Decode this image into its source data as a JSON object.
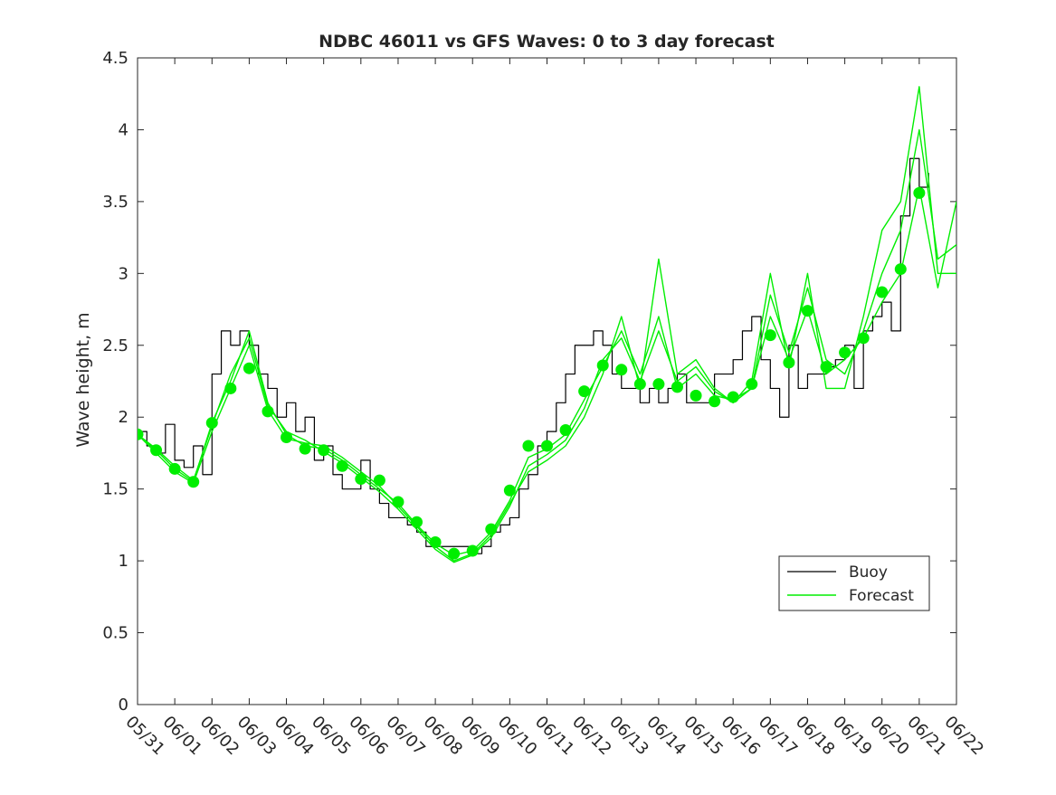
{
  "chart_data": {
    "type": "line",
    "title": "NDBC 46011 vs GFS Waves: 0 to 3 day forecast",
    "xlabel": "",
    "ylabel": "Wave height, m",
    "x_tick_labels": [
      "05/31",
      "06/01",
      "06/02",
      "06/03",
      "06/04",
      "06/05",
      "06/06",
      "06/07",
      "06/08",
      "06/09",
      "06/10",
      "06/11",
      "06/12",
      "06/13",
      "06/14",
      "06/15",
      "06/16",
      "06/17",
      "06/18",
      "06/19",
      "06/20",
      "06/21",
      "06/22"
    ],
    "xlim": [
      0,
      22
    ],
    "ylim": [
      0,
      4.5
    ],
    "y_ticks": [
      0,
      0.5,
      1,
      1.5,
      2,
      2.5,
      3,
      3.5,
      4,
      4.5
    ],
    "grid": false,
    "legend": {
      "placement": "bottom-right",
      "entries": [
        "Buoy",
        "Forecast"
      ]
    },
    "colors": {
      "buoy": "#000000",
      "forecast": "#00ee00",
      "markers": "#00ee00"
    },
    "series": [
      {
        "name": "Buoy",
        "x_unit": "days since 05/31",
        "x": [
          0,
          0.25,
          0.5,
          0.75,
          1,
          1.25,
          1.5,
          1.75,
          2,
          2.25,
          2.5,
          2.75,
          3,
          3.25,
          3.5,
          3.75,
          4,
          4.25,
          4.5,
          4.75,
          5,
          5.25,
          5.5,
          5.75,
          6,
          6.25,
          6.5,
          6.75,
          7,
          7.25,
          7.5,
          7.75,
          8,
          8.25,
          8.5,
          8.75,
          9,
          9.25,
          9.5,
          9.75,
          10,
          10.25,
          10.5,
          10.75,
          11,
          11.25,
          11.5,
          11.75,
          12,
          12.25,
          12.5,
          12.75,
          13,
          13.25,
          13.5,
          13.75,
          14,
          14.25,
          14.5,
          14.75,
          15,
          15.25,
          15.5,
          15.75,
          16,
          16.25,
          16.5,
          16.75,
          17,
          17.25,
          17.5,
          17.75,
          18,
          18.25,
          18.5,
          18.75,
          19,
          19.25,
          19.5,
          19.75,
          20,
          20.25,
          20.5,
          20.75,
          21,
          21.25
        ],
        "y": [
          1.9,
          1.8,
          1.75,
          1.95,
          1.7,
          1.65,
          1.8,
          1.6,
          2.3,
          2.6,
          2.5,
          2.6,
          2.5,
          2.3,
          2.2,
          2.0,
          2.1,
          1.9,
          2.0,
          1.7,
          1.8,
          1.6,
          1.5,
          1.5,
          1.7,
          1.5,
          1.4,
          1.3,
          1.3,
          1.25,
          1.2,
          1.1,
          1.1,
          1.1,
          1.1,
          1.1,
          1.05,
          1.1,
          1.2,
          1.25,
          1.3,
          1.5,
          1.6,
          1.8,
          1.9,
          2.1,
          2.3,
          2.5,
          2.5,
          2.6,
          2.5,
          2.3,
          2.2,
          2.2,
          2.1,
          2.2,
          2.1,
          2.2,
          2.3,
          2.1,
          2.1,
          2.1,
          2.3,
          2.3,
          2.4,
          2.6,
          2.7,
          2.4,
          2.2,
          2.0,
          2.5,
          2.2,
          2.3,
          2.3,
          2.35,
          2.4,
          2.5,
          2.2,
          2.6,
          2.7,
          2.8,
          2.6,
          3.4,
          3.8,
          3.6,
          3.7
        ]
      },
      {
        "name": "Forecast",
        "x_unit": "days since 05/31",
        "x": [
          0,
          0.5,
          1,
          1.5,
          2,
          2.5,
          3,
          3.5,
          4,
          4.5,
          5,
          5.5,
          6,
          6.5,
          7,
          7.5,
          8,
          8.5,
          9,
          9.5,
          10,
          10.5,
          11,
          11.5,
          12,
          12.5,
          13,
          13.5,
          14,
          14.5,
          15,
          15.5,
          16,
          16.5,
          17,
          17.5,
          18,
          18.5,
          19,
          19.5,
          20,
          20.5,
          21,
          21.5,
          22
        ],
        "y": [
          1.88,
          1.77,
          1.64,
          1.55,
          1.96,
          2.25,
          2.6,
          2.1,
          1.88,
          1.8,
          1.78,
          1.7,
          1.6,
          1.5,
          1.4,
          1.25,
          1.12,
          1.04,
          1.07,
          1.2,
          1.42,
          1.72,
          1.78,
          1.88,
          2.12,
          2.35,
          2.6,
          2.3,
          2.7,
          2.2,
          2.3,
          2.15,
          2.12,
          2.2,
          2.7,
          2.4,
          2.75,
          2.3,
          2.4,
          2.55,
          2.8,
          3.0,
          3.6,
          2.9,
          3.5
        ]
      },
      {
        "name": "",
        "x_unit": "days since 05/31",
        "x": [
          0,
          0.5,
          1,
          1.5,
          2,
          2.5,
          3,
          3.5,
          4,
          4.5,
          5,
          5.5,
          6,
          6.5,
          7,
          7.5,
          8,
          8.5,
          9,
          9.5,
          10,
          10.5,
          11,
          11.5,
          12,
          12.5,
          13,
          13.5,
          14,
          14.5,
          15,
          15.5,
          16,
          16.5,
          17,
          17.5,
          18,
          18.5,
          19,
          19.5,
          20,
          20.5,
          21,
          21.5,
          22
        ],
        "y": [
          1.88,
          1.75,
          1.62,
          1.54,
          1.9,
          2.2,
          2.5,
          2.05,
          1.85,
          1.82,
          1.8,
          1.72,
          1.62,
          1.52,
          1.38,
          1.24,
          1.1,
          1.0,
          1.05,
          1.18,
          1.4,
          1.62,
          1.7,
          1.8,
          2.0,
          2.3,
          2.7,
          2.2,
          3.1,
          2.3,
          2.4,
          2.2,
          2.1,
          2.25,
          3.0,
          2.35,
          3.0,
          2.2,
          2.2,
          2.7,
          3.3,
          3.5,
          4.3,
          3.0,
          3.0
        ]
      },
      {
        "name": "",
        "x_unit": "days since 05/31",
        "x": [
          0,
          0.5,
          1,
          1.5,
          2,
          2.5,
          3,
          3.5,
          4,
          4.5,
          5,
          5.5,
          6,
          6.5,
          7,
          7.5,
          8,
          8.5,
          9,
          9.5,
          10,
          10.5,
          11,
          11.5,
          12,
          12.5,
          13,
          13.5,
          14,
          14.5,
          15,
          15.5,
          16,
          16.5,
          17,
          17.5,
          18,
          18.5,
          19,
          19.5,
          20,
          20.5,
          21,
          21.5,
          22
        ],
        "y": [
          1.88,
          1.78,
          1.66,
          1.56,
          1.94,
          2.3,
          2.55,
          2.08,
          1.9,
          1.84,
          1.76,
          1.68,
          1.58,
          1.48,
          1.36,
          1.22,
          1.08,
          0.99,
          1.04,
          1.16,
          1.38,
          1.66,
          1.74,
          1.84,
          2.06,
          2.4,
          2.55,
          2.25,
          2.6,
          2.25,
          2.35,
          2.18,
          2.1,
          2.2,
          2.85,
          2.45,
          2.9,
          2.4,
          2.3,
          2.6,
          3.0,
          3.3,
          4.0,
          3.1,
          3.2
        ]
      }
    ],
    "markers": {
      "name": "Forecast points",
      "x_unit": "days since 05/31",
      "x": [
        0,
        0.5,
        1,
        1.5,
        2,
        2.5,
        3,
        3.5,
        4,
        4.5,
        5,
        5.5,
        6,
        6.5,
        7,
        7.5,
        8,
        8.5,
        9,
        9.5,
        10,
        10.5,
        11,
        11.5,
        12,
        12.5,
        13,
        13.5,
        14,
        14.5,
        15,
        15.5,
        16,
        16.5,
        17,
        17.5,
        18,
        18.5,
        19,
        19.5,
        20,
        20.5,
        21
      ],
      "y": [
        1.88,
        1.77,
        1.64,
        1.55,
        1.96,
        2.2,
        2.34,
        2.04,
        1.86,
        1.78,
        1.77,
        1.66,
        1.57,
        1.56,
        1.41,
        1.27,
        1.13,
        1.05,
        1.07,
        1.22,
        1.49,
        1.8,
        1.8,
        1.91,
        2.18,
        2.36,
        2.33,
        2.23,
        2.23,
        2.21,
        2.15,
        2.11,
        2.14,
        2.23,
        2.57,
        2.38,
        2.74,
        2.35,
        2.45,
        2.55,
        2.87,
        3.03,
        3.56
      ]
    }
  }
}
